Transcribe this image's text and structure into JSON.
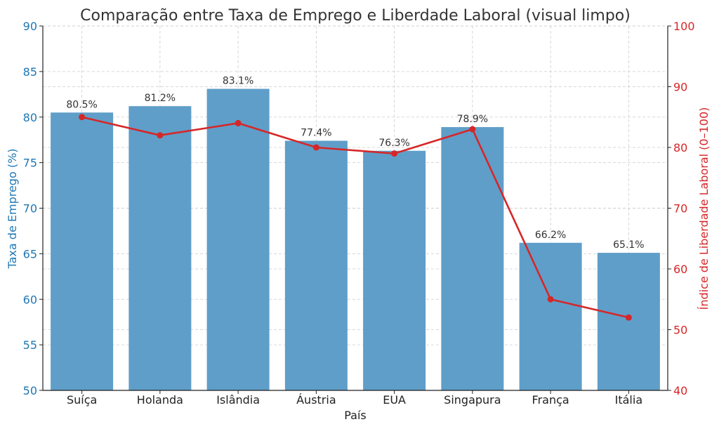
{
  "chart_data": {
    "type": "bar",
    "title": "Comparação entre Taxa de Emprego e Liberdade Laboral (visual limpo)",
    "xlabel": "País",
    "categories": [
      "Suíça",
      "Holanda",
      "Islândia",
      "Áustria",
      "EUA",
      "Singapura",
      "França",
      "Itália"
    ],
    "series": [
      {
        "name": "Taxa de Emprego (%)",
        "type": "bar",
        "axis": "left",
        "values": [
          80.5,
          81.2,
          83.1,
          77.4,
          76.3,
          78.9,
          66.2,
          65.1
        ],
        "data_labels": [
          "80.5%",
          "81.2%",
          "83.1%",
          "77.4%",
          "76.3%",
          "78.9%",
          "66.2%",
          "65.1%"
        ],
        "color": "#5f9ec9"
      },
      {
        "name": "Índice de Liberdade Laboral (0–100)",
        "type": "line",
        "axis": "right",
        "values": [
          85,
          82,
          84,
          80,
          79,
          83,
          55,
          52
        ],
        "color": "#d62728"
      }
    ],
    "y_left": {
      "label": "Taxa de Emprego (%)",
      "lim": [
        50,
        90
      ],
      "ticks": [
        50,
        55,
        60,
        65,
        70,
        75,
        80,
        85,
        90
      ],
      "color": "#1f77b4"
    },
    "y_right": {
      "label": "Índice de Liberdade Laboral (0–100)",
      "lim": [
        40,
        100
      ],
      "ticks": [
        40,
        50,
        60,
        70,
        80,
        90,
        100
      ],
      "color": "#d62728"
    },
    "grid": true
  }
}
